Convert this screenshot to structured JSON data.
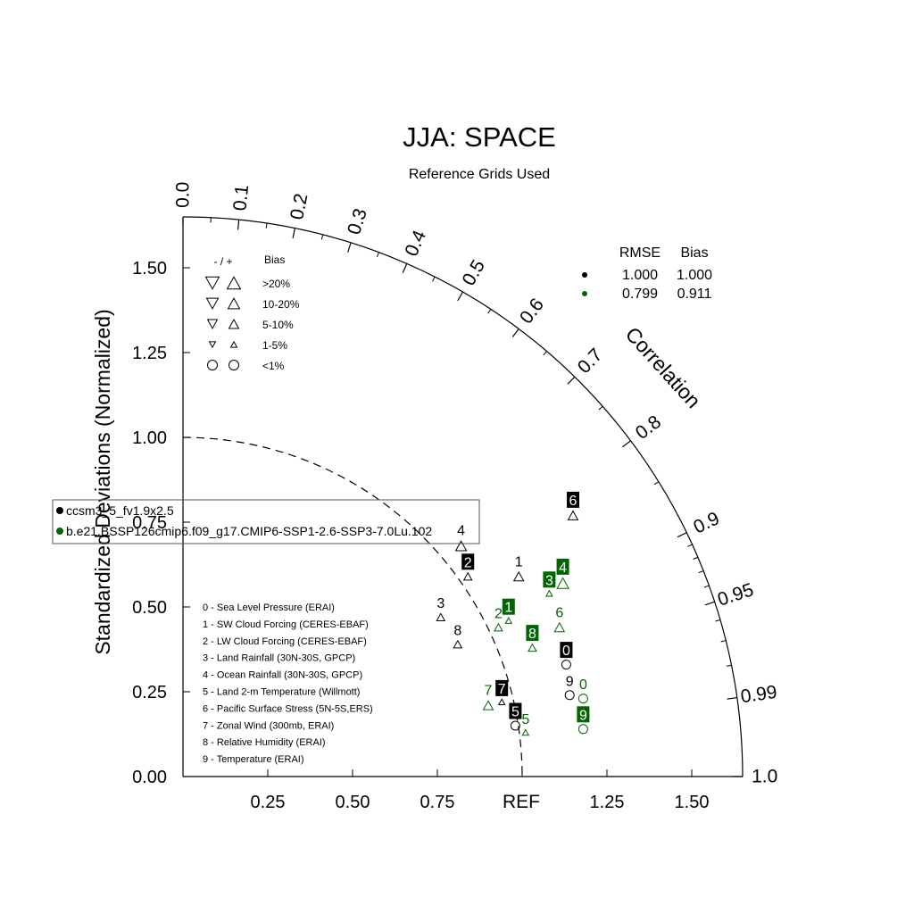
{
  "chart_data": {
    "type": "scatter",
    "subtype": "taylor-diagram",
    "title": "JJA: SPACE",
    "subtitle": "Reference Grids Used",
    "ylabel": "Standardized Deviations (Normalized)",
    "arc_label": "Correlation",
    "ref_label": "REF",
    "range": [
      0,
      1.65
    ],
    "y_ticks": [
      "0.00",
      "0.25",
      "0.50",
      "0.75",
      "1.00",
      "1.25",
      "1.50"
    ],
    "x_ticks": [
      "0.25",
      "0.50",
      "0.75",
      "1.25",
      "1.50"
    ],
    "x_tick_values": [
      0.25,
      0.5,
      0.75,
      1.25,
      1.5
    ],
    "y_tick_values": [
      0,
      0.25,
      0.5,
      0.75,
      1.0,
      1.25,
      1.5
    ],
    "corr_labels": [
      "0.0",
      "0.1",
      "0.2",
      "0.3",
      "0.4",
      "0.5",
      "0.6",
      "0.7",
      "0.8",
      "0.9",
      "0.95",
      "0.99",
      "1.0"
    ],
    "corr_values": [
      0.0,
      0.1,
      0.2,
      0.3,
      0.4,
      0.5,
      0.6,
      0.7,
      0.8,
      0.9,
      0.95,
      0.99,
      1.0
    ],
    "ref_std": 1.0,
    "colors": {
      "case0": "#000000",
      "case1": "#006400"
    },
    "cases": [
      {
        "name": "ccsm3_5_fv1.9x2.5",
        "color": "#000000",
        "rmse": "1.000",
        "bias": "1.000"
      },
      {
        "name": "b.e21.BSSP126cmip6.f09_g17.CMIP6-SSP1-2.6-SSP3-7.0Lu.102",
        "color": "#006400",
        "rmse": "0.799",
        "bias": "0.911"
      }
    ],
    "stats_header": {
      "rmse": "RMSE",
      "bias": "Bias"
    },
    "variables": [
      "0 - Sea Level Pressure (ERAI)",
      "1 - SW Cloud Forcing (CERES-EBAF)",
      "2 - LW Cloud Forcing (CERES-EBAF)",
      "3 - Land Rainfall (30N-30S, GPCP)",
      "4 - Ocean Rainfall (30N-30S, GPCP)",
      "5 - Land 2-m Temperature (Willmott)",
      "6 - Pacific Surface Stress (5N-5S,ERS)",
      "7 - Zonal Wind (300mb, ERAI)",
      "8 - Relative Humidity (ERAI)",
      "9 - Temperature (ERAI)"
    ],
    "bias_legend": {
      "header_signs": "- / +",
      "header_bias": "Bias",
      "rows": [
        {
          "label": ">20%",
          "shape": "triangle",
          "size": "largest"
        },
        {
          "label": "10-20%",
          "shape": "triangle",
          "size": "large"
        },
        {
          "label": "5-10%",
          "shape": "triangle",
          "size": "medium"
        },
        {
          "label": "1-5%",
          "shape": "triangle",
          "size": "small"
        },
        {
          "label": "<1%",
          "shape": "circle",
          "size": "medium"
        }
      ]
    },
    "points": [
      {
        "case": 0,
        "var": "0",
        "x": 1.13,
        "y": 0.33,
        "shape": "circle",
        "size": 9,
        "boxed": true
      },
      {
        "case": 0,
        "var": "1",
        "x": 0.99,
        "y": 0.59,
        "shape": "tri-up",
        "size": 11,
        "boxed": false
      },
      {
        "case": 0,
        "var": "2",
        "x": 0.84,
        "y": 0.59,
        "shape": "tri-up",
        "size": 9,
        "boxed": true
      },
      {
        "case": 0,
        "var": "3",
        "x": 0.76,
        "y": 0.47,
        "shape": "tri-up",
        "size": 9,
        "boxed": false
      },
      {
        "case": 0,
        "var": "4",
        "x": 0.82,
        "y": 0.68,
        "shape": "tri-up",
        "size": 12,
        "boxed": false
      },
      {
        "case": 0,
        "var": "5",
        "x": 0.98,
        "y": 0.15,
        "shape": "circle",
        "size": 9,
        "boxed": true
      },
      {
        "case": 0,
        "var": "6",
        "x": 1.15,
        "y": 0.77,
        "shape": "tri-up",
        "size": 11,
        "boxed": true
      },
      {
        "case": 0,
        "var": "7",
        "x": 0.94,
        "y": 0.22,
        "shape": "tri-up",
        "size": 7,
        "boxed": true
      },
      {
        "case": 0,
        "var": "8",
        "x": 0.81,
        "y": 0.39,
        "shape": "tri-up",
        "size": 9,
        "boxed": false
      },
      {
        "case": 0,
        "var": "9",
        "x": 1.14,
        "y": 0.24,
        "shape": "circle",
        "size": 9,
        "boxed": false
      },
      {
        "case": 1,
        "var": "0",
        "x": 1.18,
        "y": 0.23,
        "shape": "circle",
        "size": 9,
        "boxed": false
      },
      {
        "case": 1,
        "var": "1",
        "x": 0.96,
        "y": 0.46,
        "shape": "tri-up",
        "size": 7,
        "boxed": true
      },
      {
        "case": 1,
        "var": "2",
        "x": 0.93,
        "y": 0.44,
        "shape": "tri-up",
        "size": 9,
        "boxed": false
      },
      {
        "case": 1,
        "var": "3",
        "x": 1.08,
        "y": 0.54,
        "shape": "tri-up",
        "size": 7,
        "boxed": true
      },
      {
        "case": 1,
        "var": "4",
        "x": 1.12,
        "y": 0.57,
        "shape": "tri-up",
        "size": 13,
        "boxed": true
      },
      {
        "case": 1,
        "var": "5",
        "x": 1.01,
        "y": 0.13,
        "shape": "tri-up",
        "size": 7,
        "boxed": false
      },
      {
        "case": 1,
        "var": "6",
        "x": 1.11,
        "y": 0.44,
        "shape": "tri-up",
        "size": 11,
        "boxed": false
      },
      {
        "case": 1,
        "var": "7",
        "x": 0.9,
        "y": 0.21,
        "shape": "tri-up",
        "size": 11,
        "boxed": false
      },
      {
        "case": 1,
        "var": "8",
        "x": 1.03,
        "y": 0.38,
        "shape": "tri-up",
        "size": 9,
        "boxed": true
      },
      {
        "case": 1,
        "var": "9",
        "x": 1.18,
        "y": 0.14,
        "shape": "circle",
        "size": 9,
        "boxed": true
      }
    ]
  }
}
